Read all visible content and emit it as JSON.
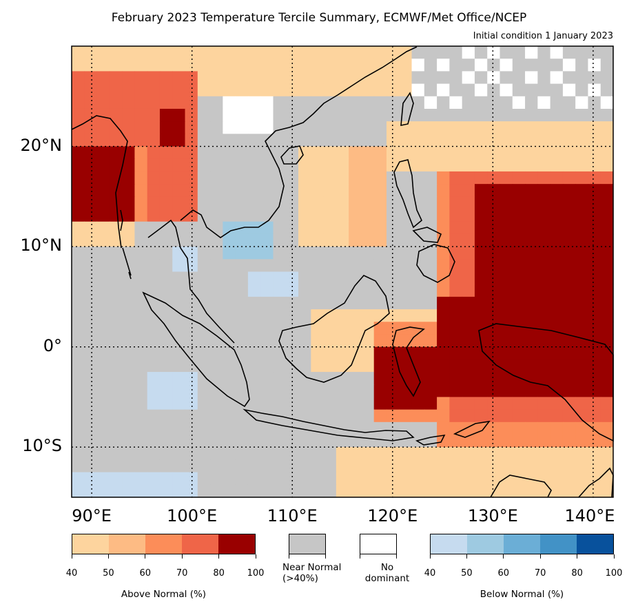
{
  "title": "February 2023 Temperature Tercile Summary, ECMWF/Met Office/NCEP",
  "subtitle": "Initial condition 1 January 2023",
  "map": {
    "lon_range": [
      88,
      142
    ],
    "lat_range": [
      -15,
      30
    ],
    "lon_ticks": [
      "90°E",
      "100°E",
      "110°E",
      "120°E",
      "130°E",
      "140°E"
    ],
    "lat_ticks": [
      "20°N",
      "10°N",
      "0°",
      "10°S"
    ],
    "gridlines": "dotted",
    "colors": {
      "above": [
        "#fdd49e",
        "#fdbb84",
        "#fc8d59",
        "#ef6548",
        "#990000"
      ],
      "near_normal": "#c6c6c6",
      "no_dominant": "#ffffff",
      "below": [
        "#c6dbef",
        "#9ecae1",
        "#6baed6",
        "#4292c6",
        "#08519c"
      ]
    }
  },
  "legend": {
    "above": {
      "label": "Above Normal (%)",
      "ticks": [
        "40",
        "50",
        "60",
        "70",
        "80",
        "100"
      ]
    },
    "near_normal": {
      "label_line1": "Near Normal",
      "label_line2": "(>40%)"
    },
    "no_dominant": {
      "label_line1": "No",
      "label_line2": "dominant"
    },
    "below": {
      "label": "Below Normal (%)",
      "ticks": [
        "40",
        "50",
        "60",
        "70",
        "80",
        "100"
      ]
    }
  }
}
